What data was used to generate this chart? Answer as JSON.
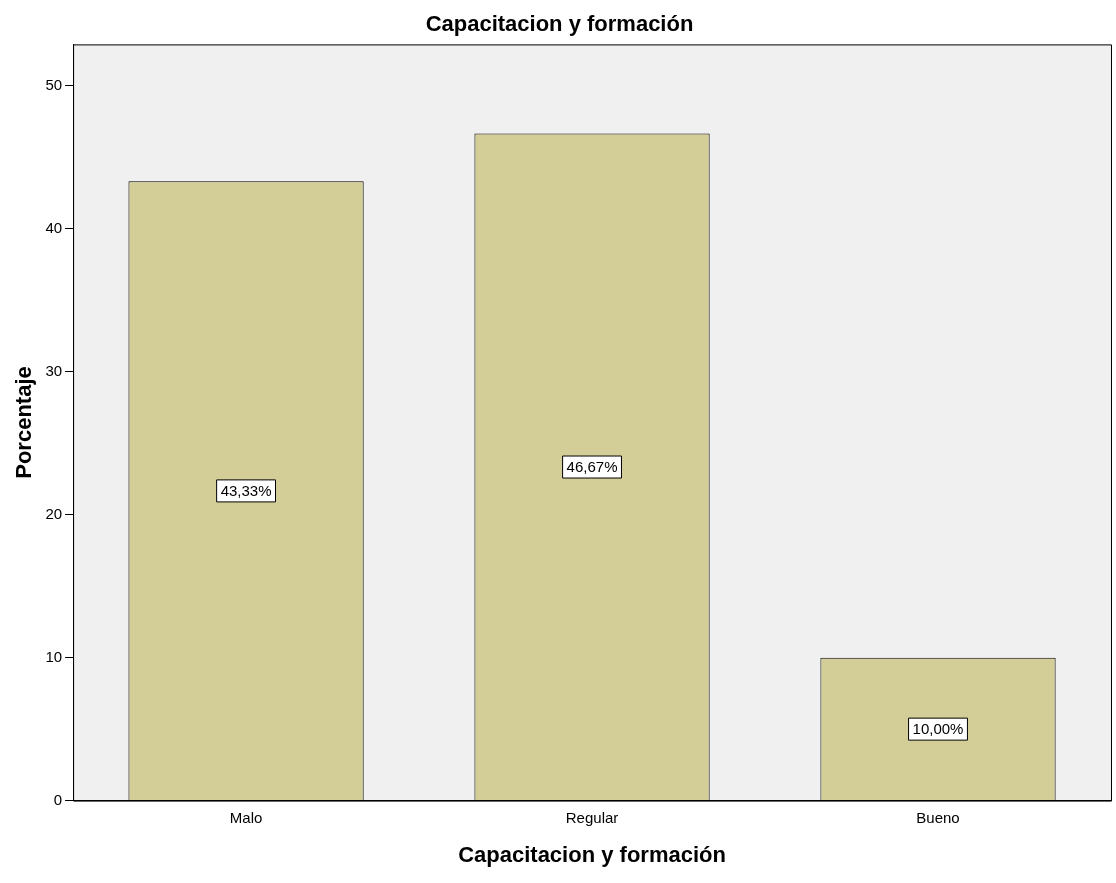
{
  "chart_data": {
    "type": "bar",
    "title": "Capacitacion y formación",
    "xlabel": "Capacitacion y formación",
    "ylabel": "Porcentaje",
    "categories": [
      "Malo",
      "Regular",
      "Bueno"
    ],
    "values": [
      43.33,
      46.67,
      10.0
    ],
    "value_labels": [
      "43,33%",
      "46,67%",
      "10,00%"
    ],
    "color": "#d3ce97",
    "ylim": [
      0,
      52.9
    ],
    "yticks": [
      0,
      10,
      20,
      30,
      40,
      50
    ],
    "grid": false,
    "legend": false
  }
}
